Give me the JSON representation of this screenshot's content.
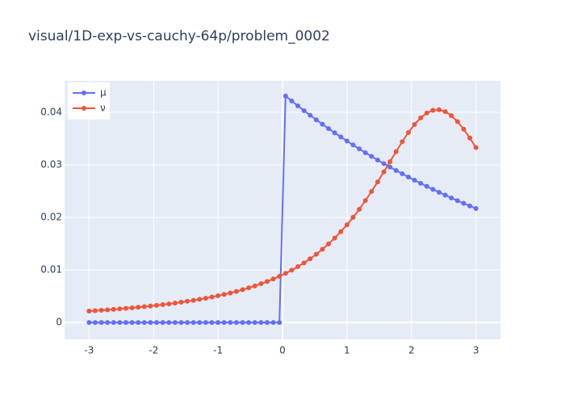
{
  "chart_data": {
    "type": "line",
    "title": "visual/1D-exp-vs-cauchy-64p/problem_0002",
    "x": [
      -3,
      -2.9048,
      -2.8095,
      -2.7143,
      -2.619,
      -2.5238,
      -2.4286,
      -2.3333,
      -2.2381,
      -2.1429,
      -2.0476,
      -1.9524,
      -1.8571,
      -1.7619,
      -1.6667,
      -1.5714,
      -1.4762,
      -1.381,
      -1.2857,
      -1.1905,
      -1.0952,
      -1,
      -0.9048,
      -0.8095,
      -0.7143,
      -0.619,
      -0.5238,
      -0.4286,
      -0.3333,
      -0.2381,
      -0.1429,
      -0.0476,
      0.0476,
      0.1429,
      0.2381,
      0.3333,
      0.4286,
      0.5238,
      0.619,
      0.7143,
      0.8095,
      0.9048,
      1,
      1.0952,
      1.1905,
      1.2857,
      1.381,
      1.4762,
      1.5714,
      1.6667,
      1.7619,
      1.8571,
      1.9524,
      2.0476,
      2.1429,
      2.2381,
      2.3333,
      2.4286,
      2.5238,
      2.619,
      2.7143,
      2.8095,
      2.9048,
      3
    ],
    "series": [
      {
        "name": "μ",
        "color": "#636efa",
        "values": [
          0,
          0,
          0,
          0,
          0,
          0,
          0,
          0,
          0,
          0,
          0,
          0,
          0,
          0,
          0,
          0,
          0,
          0,
          0,
          0,
          0,
          0,
          0,
          0,
          0,
          0,
          0,
          0,
          0,
          0,
          0,
          0,
          0.0431,
          0.04216,
          0.04123,
          0.04033,
          0.03945,
          0.03858,
          0.03774,
          0.03691,
          0.03611,
          0.03532,
          0.03454,
          0.03379,
          0.03305,
          0.03232,
          0.03162,
          0.03092,
          0.03025,
          0.02959,
          0.02894,
          0.02831,
          0.02769,
          0.02708,
          0.02649,
          0.02591,
          0.02534,
          0.02479,
          0.02425,
          0.02371,
          0.02319,
          0.02269,
          0.02219,
          0.0217
        ]
      },
      {
        "name": "ν",
        "color": "#ef553b",
        "values": [
          0.00219,
          0.00226,
          0.00234,
          0.00242,
          0.00251,
          0.0026,
          0.0027,
          0.0028,
          0.00291,
          0.00302,
          0.00314,
          0.00327,
          0.00341,
          0.00355,
          0.0037,
          0.00387,
          0.00404,
          0.00422,
          0.00442,
          0.00463,
          0.00486,
          0.0051,
          0.00536,
          0.00563,
          0.00593,
          0.00625,
          0.0066,
          0.00697,
          0.00738,
          0.00782,
          0.00829,
          0.0088,
          0.00936,
          0.00997,
          0.01063,
          0.01135,
          0.01214,
          0.013,
          0.01394,
          0.01496,
          0.01607,
          0.01729,
          0.0186,
          0.02002,
          0.02155,
          0.0232,
          0.02494,
          0.02677,
          0.02866,
          0.03061,
          0.03253,
          0.03441,
          0.03616,
          0.03769,
          0.03895,
          0.03987,
          0.04039,
          0.04048,
          0.04013,
          0.03937,
          0.03823,
          0.03679,
          0.03512,
          0.03329
        ]
      }
    ],
    "xlim": [
      -3.38,
      3.38
    ],
    "ylim": [
      -0.0032,
      0.046
    ],
    "xticks": [
      -3,
      -2,
      -1,
      0,
      1,
      2,
      3
    ],
    "yticks": [
      0,
      0.01,
      0.02,
      0.03,
      0.04
    ],
    "grid": true,
    "legend": "top-left"
  }
}
